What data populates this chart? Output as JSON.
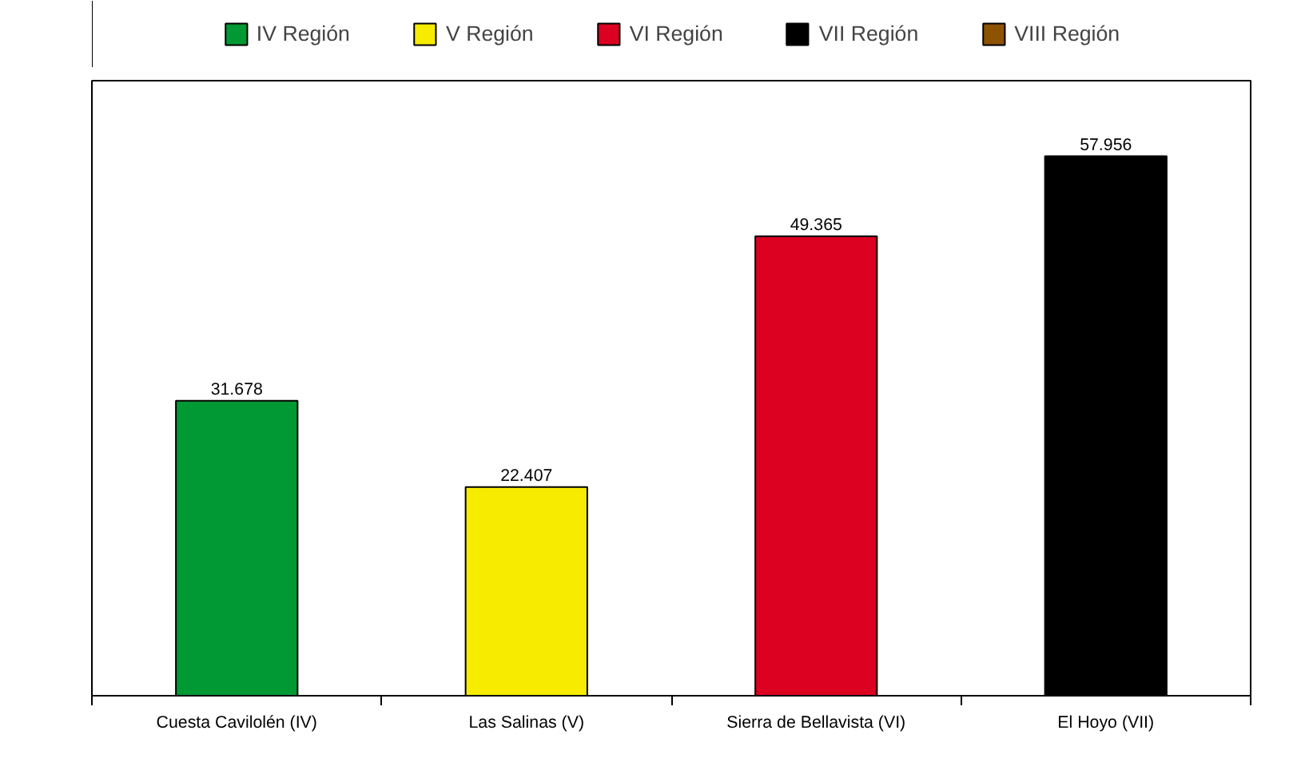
{
  "chart_data": {
    "type": "bar",
    "categories": [
      "Cuesta Cavilolén (IV)",
      "Las Salinas (V)",
      "Sierra de Bellavista (VI)",
      "El Hoyo (VII)"
    ],
    "series": [
      {
        "name": "IV Región",
        "color": "#009933",
        "values": [
          31.678,
          null,
          null,
          null
        ]
      },
      {
        "name": "V Región",
        "color": "#f7ec00",
        "values": [
          null,
          22.407,
          null,
          null
        ]
      },
      {
        "name": "VI Región",
        "color": "#dc0021",
        "values": [
          null,
          null,
          49.365,
          null
        ]
      },
      {
        "name": "VII Región",
        "color": "#000000",
        "values": [
          null,
          null,
          null,
          57.956
        ]
      },
      {
        "name": "VIII Región",
        "color": "#8e5300",
        "values": [
          null,
          null,
          null,
          null
        ]
      }
    ],
    "data_labels": true,
    "legend": "top",
    "grid": false,
    "tick_labels": "x"
  }
}
